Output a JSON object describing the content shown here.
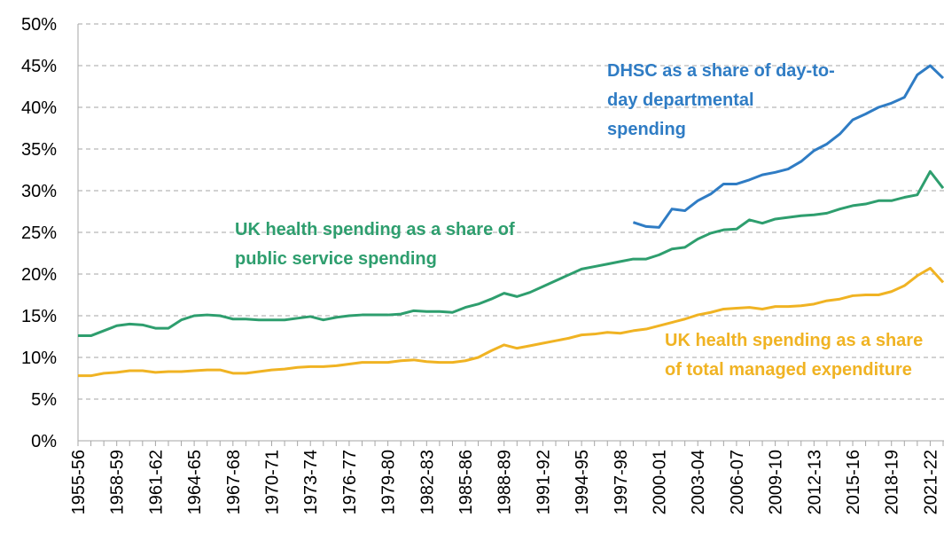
{
  "chart_data": {
    "type": "line",
    "categories": [
      "1955-56",
      null,
      null,
      "1958-59",
      null,
      null,
      "1961-62",
      null,
      null,
      "1964-65",
      null,
      null,
      "1967-68",
      null,
      null,
      "1970-71",
      null,
      null,
      "1973-74",
      null,
      null,
      "1976-77",
      null,
      null,
      "1979-80",
      null,
      null,
      "1982-83",
      null,
      null,
      "1985-86",
      null,
      null,
      "1988-89",
      null,
      null,
      "1991-92",
      null,
      null,
      "1994-95",
      null,
      null,
      "1997-98",
      null,
      null,
      "2000-01",
      null,
      null,
      "2003-04",
      null,
      null,
      "2006-07",
      null,
      null,
      "2009-10",
      null,
      null,
      "2012-13",
      null,
      null,
      "2015-16",
      null,
      null,
      "2018-19",
      null,
      null,
      "2021-22",
      null
    ],
    "series": [
      {
        "name": "DHSC as a share of day-to-day departmental spending",
        "color": "#2f7cc4",
        "values": [
          null,
          null,
          null,
          null,
          null,
          null,
          null,
          null,
          null,
          null,
          null,
          null,
          null,
          null,
          null,
          null,
          null,
          null,
          null,
          null,
          null,
          null,
          null,
          null,
          null,
          null,
          null,
          null,
          null,
          null,
          null,
          null,
          null,
          null,
          null,
          null,
          null,
          null,
          null,
          null,
          null,
          null,
          null,
          26.2,
          25.7,
          25.6,
          27.8,
          27.6,
          28.8,
          29.6,
          30.8,
          30.8,
          31.3,
          31.9,
          32.2,
          32.6,
          33.5,
          34.8,
          35.6,
          36.8,
          38.5,
          39.2,
          40.0,
          40.5,
          41.2,
          43.9,
          45.0,
          43.5
        ]
      },
      {
        "name": "UK health spending as a share of public service spending",
        "color": "#2e9e6e",
        "values": [
          12.6,
          12.6,
          13.2,
          13.8,
          14.0,
          13.9,
          13.5,
          13.5,
          14.5,
          15.0,
          15.1,
          15.0,
          14.6,
          14.6,
          14.5,
          14.5,
          14.5,
          14.7,
          14.9,
          14.5,
          14.8,
          15.0,
          15.1,
          15.1,
          15.1,
          15.2,
          15.6,
          15.5,
          15.5,
          15.4,
          16.0,
          16.4,
          17.0,
          17.7,
          17.3,
          17.8,
          18.5,
          19.2,
          19.9,
          20.6,
          20.9,
          21.2,
          21.5,
          21.8,
          21.8,
          22.3,
          23.0,
          23.2,
          24.2,
          24.9,
          25.3,
          25.4,
          26.5,
          26.1,
          26.6,
          26.8,
          27.0,
          27.1,
          27.3,
          27.8,
          28.2,
          28.4,
          28.8,
          28.8,
          29.2,
          29.5,
          32.3,
          30.3
        ]
      },
      {
        "name": "UK health spending as a share of total managed expenditure",
        "color": "#f0b323",
        "values": [
          7.8,
          7.8,
          8.1,
          8.2,
          8.4,
          8.4,
          8.2,
          8.3,
          8.3,
          8.4,
          8.5,
          8.5,
          8.1,
          8.1,
          8.3,
          8.5,
          8.6,
          8.8,
          8.9,
          8.9,
          9.0,
          9.2,
          9.4,
          9.4,
          9.4,
          9.6,
          9.7,
          9.5,
          9.4,
          9.4,
          9.6,
          10.0,
          10.8,
          11.5,
          11.1,
          11.4,
          11.7,
          12.0,
          12.3,
          12.7,
          12.8,
          13.0,
          12.9,
          13.2,
          13.4,
          13.8,
          14.2,
          14.6,
          15.1,
          15.4,
          15.8,
          15.9,
          16.0,
          15.8,
          16.1,
          16.1,
          16.2,
          16.4,
          16.8,
          17.0,
          17.4,
          17.5,
          17.5,
          17.9,
          18.6,
          19.8,
          20.7,
          19.0
        ]
      }
    ],
    "ylim": [
      0,
      50
    ],
    "yticks": [
      {
        "value": 0,
        "label": "0%"
      },
      {
        "value": 5,
        "label": "5%"
      },
      {
        "value": 10,
        "label": "10%"
      },
      {
        "value": 15,
        "label": "15%"
      },
      {
        "value": 20,
        "label": "20%"
      },
      {
        "value": 25,
        "label": "25%"
      },
      {
        "value": 30,
        "label": "30%"
      },
      {
        "value": 35,
        "label": "35%"
      },
      {
        "value": 40,
        "label": "40%"
      },
      {
        "value": 45,
        "label": "45%"
      },
      {
        "value": 50,
        "label": "50%"
      }
    ],
    "grid": true
  }
}
